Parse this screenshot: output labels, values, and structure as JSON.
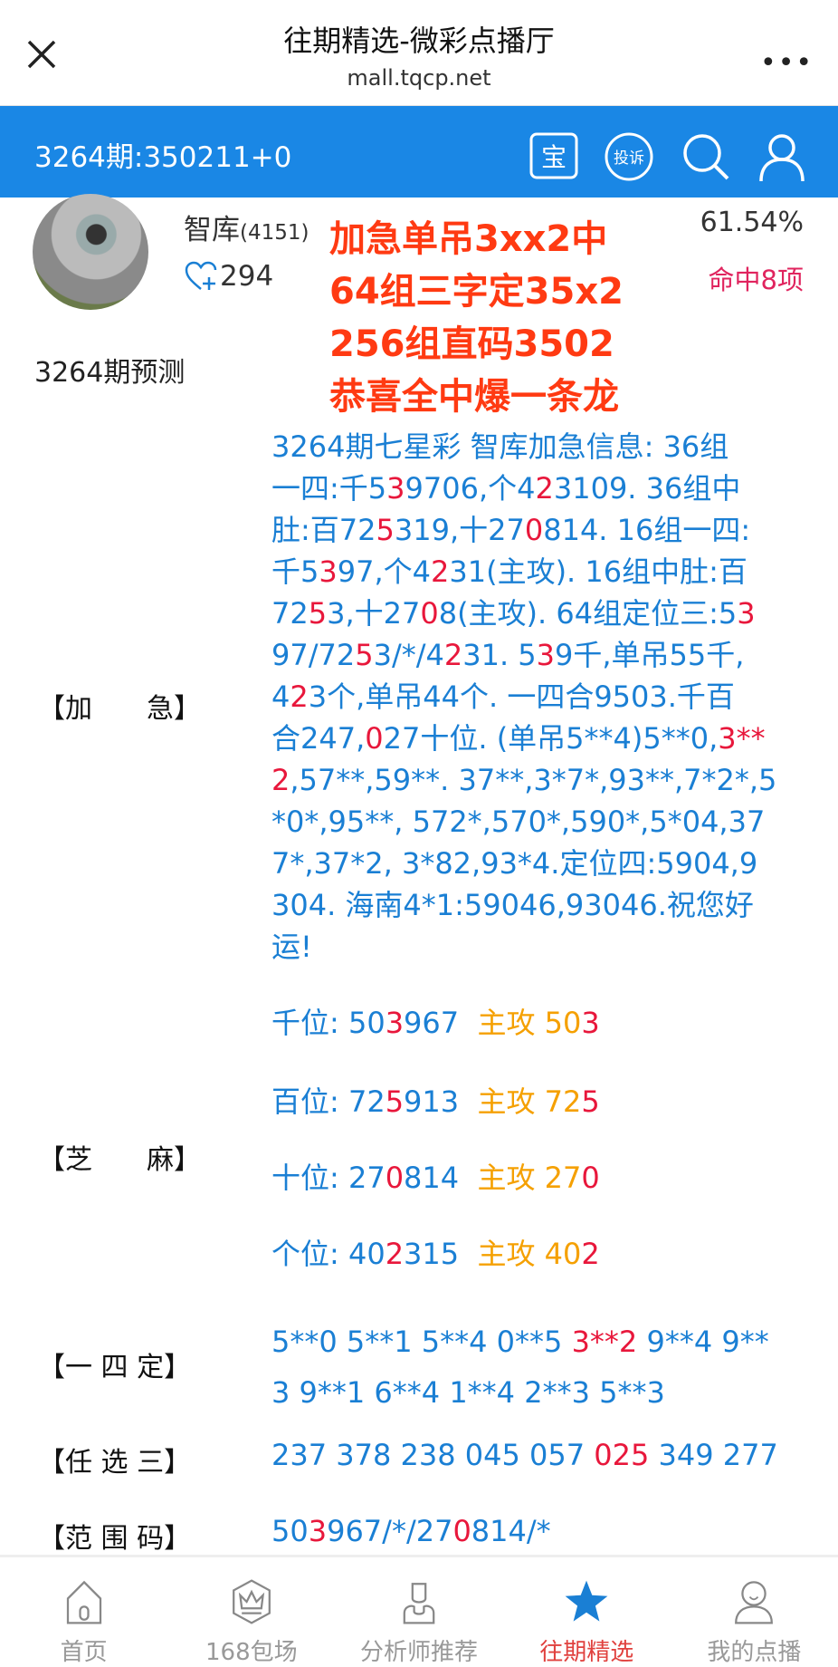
{
  "header": {
    "title": "往期精选-微彩点播厅",
    "subtitle": "mall.tqcp.net",
    "close_icon": "close-icon",
    "more_icon": "more-icon"
  },
  "toolbar": {
    "period": "3264期:350211+0",
    "bao_label": "宝",
    "complaint_label": "投诉",
    "accent": "#1a87e5"
  },
  "profile": {
    "name": "智库",
    "count": "(4151)",
    "fans": "294",
    "rate": "61.54%",
    "hits": "命中8项"
  },
  "promo": [
    "加急单吊3xx2中",
    "64组三字定35x2",
    "256组直码3502",
    "恭喜全中爆一条龙"
  ],
  "predict_title": "3264期预测",
  "labels": {
    "jiaji": "【加　　急】",
    "zhima": "【芝　　麻】",
    "yisi": "【一 四 定】",
    "renxuan": "【任 选 三】",
    "fanwei": "【范 围 码】"
  },
  "jiaji_lines": [
    [
      [
        "3264期七星彩 智库加急信息: 36组",
        "b"
      ]
    ],
    [
      [
        "一四:千5",
        "b"
      ],
      [
        "3",
        "r"
      ],
      [
        "9706,个4",
        "b"
      ],
      [
        "2",
        "r"
      ],
      [
        "3109. 36组中",
        "b"
      ]
    ],
    [
      [
        "肚:百72",
        "b"
      ],
      [
        "5",
        "r"
      ],
      [
        "319,十27",
        "b"
      ],
      [
        "0",
        "r"
      ],
      [
        "814. 16组一四:",
        "b"
      ]
    ],
    [
      [
        "千5",
        "b"
      ],
      [
        "3",
        "r"
      ],
      [
        "97,个4",
        "b"
      ],
      [
        "2",
        "r"
      ],
      [
        "31(主攻). 16组中肚:百",
        "b"
      ]
    ],
    [
      [
        "72",
        "b"
      ],
      [
        "5",
        "r"
      ],
      [
        "3,十27",
        "b"
      ],
      [
        "0",
        "r"
      ],
      [
        "8(主攻). 64组定位三:5",
        "b"
      ],
      [
        "3",
        "r"
      ]
    ],
    [
      [
        "97/72",
        "b"
      ],
      [
        "5",
        "r"
      ],
      [
        "3/*/4",
        "b"
      ],
      [
        "2",
        "r"
      ],
      [
        "31. 5",
        "b"
      ],
      [
        "3",
        "r"
      ],
      [
        "9千,单吊55千,",
        "b"
      ]
    ],
    [
      [
        "4",
        "b"
      ],
      [
        "2",
        "r"
      ],
      [
        "3个,单吊44个. 一四合9503.千百",
        "b"
      ]
    ],
    [
      [
        "合247,",
        "b"
      ],
      [
        "0",
        "r"
      ],
      [
        "27十位. (单吊5**4)5**0,",
        "b"
      ],
      [
        "3**",
        "r"
      ]
    ],
    [
      [
        "2",
        "r"
      ],
      [
        ",57**,59**. 37**,3*7*,93**,7*2*,5",
        "b"
      ]
    ],
    [
      [
        "*0*,95**, 572*,570*,590*,5*04,37",
        "b"
      ]
    ],
    [
      [
        "7*,37*2, 3*82,93*4.定位四:5904,9",
        "b"
      ]
    ],
    [
      [
        "304. 海南4*1:59046,93046.祝您好",
        "b"
      ]
    ],
    [
      [
        "运!",
        "b"
      ]
    ]
  ],
  "zhima_rows": [
    [
      [
        "千位: 50",
        "b"
      ],
      [
        "3",
        "r"
      ],
      [
        "967  ",
        "b"
      ],
      [
        "主攻 50",
        "o"
      ],
      [
        "3",
        "r"
      ]
    ],
    [
      [
        "百位: 72",
        "b"
      ],
      [
        "5",
        "r"
      ],
      [
        "913  ",
        "b"
      ],
      [
        "主攻 72",
        "o"
      ],
      [
        "5",
        "r"
      ]
    ],
    [
      [
        "十位: 27",
        "b"
      ],
      [
        "0",
        "r"
      ],
      [
        "814  ",
        "b"
      ],
      [
        "主攻 27",
        "o"
      ],
      [
        "0",
        "r"
      ]
    ],
    [
      [
        "个位: 40",
        "b"
      ],
      [
        "2",
        "r"
      ],
      [
        "315  ",
        "b"
      ],
      [
        "主攻 40",
        "o"
      ],
      [
        "2",
        "r"
      ]
    ]
  ],
  "yisi_lines": [
    [
      [
        "5**0 5**1 5**4 0**5 ",
        "b"
      ],
      [
        "3**2",
        "r"
      ],
      [
        " 9**4 9**",
        "b"
      ]
    ],
    [
      [
        "3 9**1 6**4 1**4 2**3 5**3",
        "b"
      ]
    ]
  ],
  "renxuan_line": [
    [
      "237 378 238 045 057 ",
      "b"
    ],
    [
      "025",
      "r"
    ],
    [
      " 349 277",
      "b"
    ]
  ],
  "fanwei_line": [
    [
      "50",
      "b"
    ],
    [
      "3",
      "r"
    ],
    [
      "967/*/27",
      "b"
    ],
    [
      "0",
      "r"
    ],
    [
      "814/*",
      "b"
    ]
  ],
  "nav": [
    {
      "label": "首页",
      "icon": "home-icon"
    },
    {
      "label": "168包场",
      "icon": "crown-icon"
    },
    {
      "label": "分析师推荐",
      "icon": "analyst-icon"
    },
    {
      "label": "往期精选",
      "icon": "star-icon",
      "active": true
    },
    {
      "label": "我的点播",
      "icon": "profile-icon"
    }
  ]
}
